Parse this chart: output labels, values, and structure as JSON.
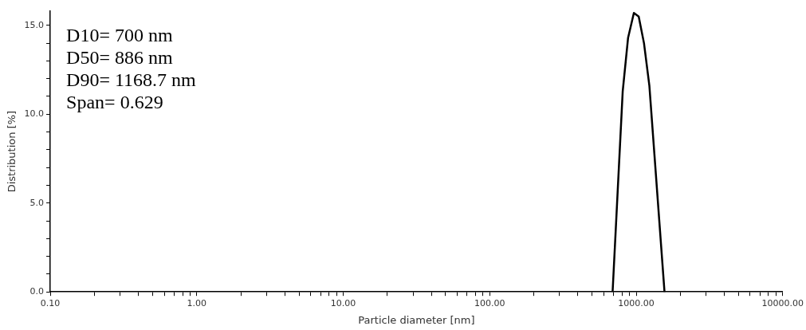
{
  "chart_data": {
    "type": "line",
    "xlabel": "Particle diameter [nm]",
    "ylabel": "Distribution [%]",
    "annotations": [
      "D10= 700 nm",
      "D50= 886 nm",
      "D90= 1168.7 nm",
      "Span= 0.629"
    ],
    "log": "x",
    "legend": false,
    "marker": "none",
    "line_style": "solid",
    "xlim": [
      0.1,
      10000
    ],
    "ylim": [
      0,
      15.8
    ],
    "xticks": [
      {
        "value": 0.1,
        "label": "0.10"
      },
      {
        "value": 0.2,
        "label": null
      },
      {
        "value": 0.3,
        "label": null
      },
      {
        "value": 0.4,
        "label": null
      },
      {
        "value": 0.5,
        "label": null
      },
      {
        "value": 0.6,
        "label": null
      },
      {
        "value": 0.7,
        "label": null
      },
      {
        "value": 0.8,
        "label": null
      },
      {
        "value": 0.9,
        "label": null
      },
      {
        "value": 1,
        "label": "1.00"
      },
      {
        "value": 2,
        "label": null
      },
      {
        "value": 3,
        "label": null
      },
      {
        "value": 4,
        "label": null
      },
      {
        "value": 5,
        "label": null
      },
      {
        "value": 6,
        "label": null
      },
      {
        "value": 7,
        "label": null
      },
      {
        "value": 8,
        "label": null
      },
      {
        "value": 9,
        "label": null
      },
      {
        "value": 10,
        "label": "10.00"
      },
      {
        "value": 20,
        "label": null
      },
      {
        "value": 30,
        "label": null
      },
      {
        "value": 40,
        "label": null
      },
      {
        "value": 50,
        "label": null
      },
      {
        "value": 60,
        "label": null
      },
      {
        "value": 70,
        "label": null
      },
      {
        "value": 80,
        "label": null
      },
      {
        "value": 90,
        "label": null
      },
      {
        "value": 100,
        "label": "100.00"
      },
      {
        "value": 200,
        "label": null
      },
      {
        "value": 300,
        "label": null
      },
      {
        "value": 400,
        "label": null
      },
      {
        "value": 500,
        "label": null
      },
      {
        "value": 600,
        "label": null
      },
      {
        "value": 700,
        "label": null
      },
      {
        "value": 800,
        "label": null
      },
      {
        "value": 900,
        "label": null
      },
      {
        "value": 1000,
        "label": "1000.00"
      },
      {
        "value": 2000,
        "label": null
      },
      {
        "value": 3000,
        "label": null
      },
      {
        "value": 4000,
        "label": null
      },
      {
        "value": 5000,
        "label": null
      },
      {
        "value": 6000,
        "label": null
      },
      {
        "value": 7000,
        "label": null
      },
      {
        "value": 8000,
        "label": null
      },
      {
        "value": 9000,
        "label": null
      },
      {
        "value": 10000,
        "label": "10000.00"
      }
    ],
    "yticks": [
      {
        "value": 0,
        "label": "0.0"
      },
      {
        "value": 1,
        "label": null
      },
      {
        "value": 2,
        "label": null
      },
      {
        "value": 3,
        "label": null
      },
      {
        "value": 4,
        "label": null
      },
      {
        "value": 5,
        "label": "5.0"
      },
      {
        "value": 6,
        "label": null
      },
      {
        "value": 7,
        "label": null
      },
      {
        "value": 8,
        "label": null
      },
      {
        "value": 9,
        "label": null
      },
      {
        "value": 10,
        "label": "10.0"
      },
      {
        "value": 11,
        "label": null
      },
      {
        "value": 12,
        "label": null
      },
      {
        "value": 13,
        "label": null
      },
      {
        "value": 14,
        "label": null
      },
      {
        "value": 15,
        "label": "15.0"
      }
    ],
    "series": [
      {
        "color": "#000000",
        "x": [
          690,
          809,
          880,
          964,
          1040,
          1130,
          1230,
          1560
        ],
        "values": [
          0,
          11.3,
          14.3,
          15.7,
          15.5,
          14.0,
          11.6,
          0
        ]
      }
    ]
  }
}
